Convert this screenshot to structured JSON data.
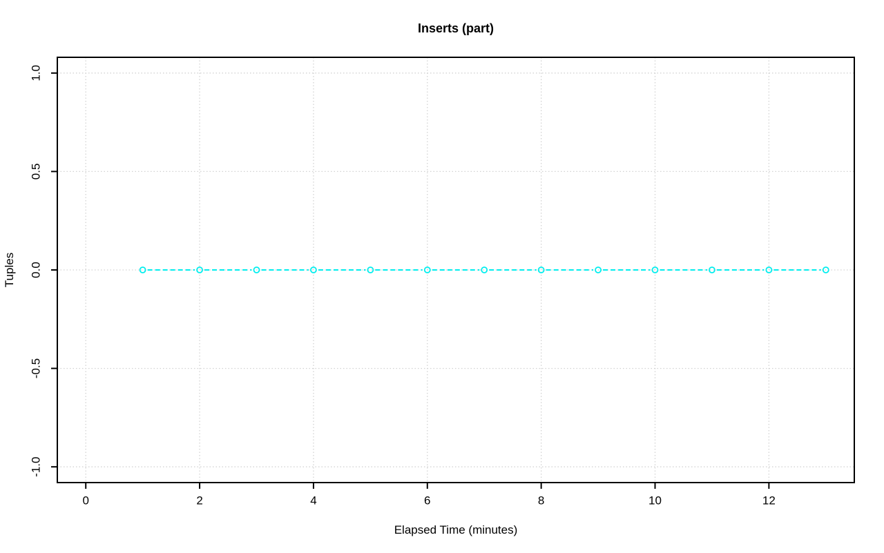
{
  "chart_data": {
    "type": "line",
    "title": "Inserts (part)",
    "xlabel": "Elapsed Time (minutes)",
    "ylabel": "Tuples",
    "x": [
      1,
      2,
      3,
      4,
      5,
      6,
      7,
      8,
      9,
      10,
      11,
      12,
      13
    ],
    "y": [
      0,
      0,
      0,
      0,
      0,
      0,
      0,
      0,
      0,
      0,
      0,
      0,
      0
    ],
    "series_name": "Tuples",
    "xlim": [
      -0.5,
      13.5
    ],
    "ylim": [
      -1.08,
      1.08
    ],
    "xticks": {
      "values": [
        0,
        2,
        4,
        6,
        8,
        10,
        12
      ],
      "labels": [
        "0",
        "2",
        "4",
        "6",
        "8",
        "10",
        "12"
      ]
    },
    "yticks": {
      "values": [
        1.0,
        0.5,
        0.0,
        -0.5,
        -1.0
      ],
      "labels": [
        "1.0",
        "0.5",
        "0.0",
        "-0.5",
        "-1.0"
      ]
    },
    "grid": "dotted, at all axis ticks",
    "legend": "none",
    "marker": "open-circle",
    "line_style": "dashed",
    "colors": {
      "series": "#00eeee",
      "grid": "#d2d2d2",
      "axis": "#000000",
      "text": "#000000",
      "background": "#ffffff"
    }
  }
}
